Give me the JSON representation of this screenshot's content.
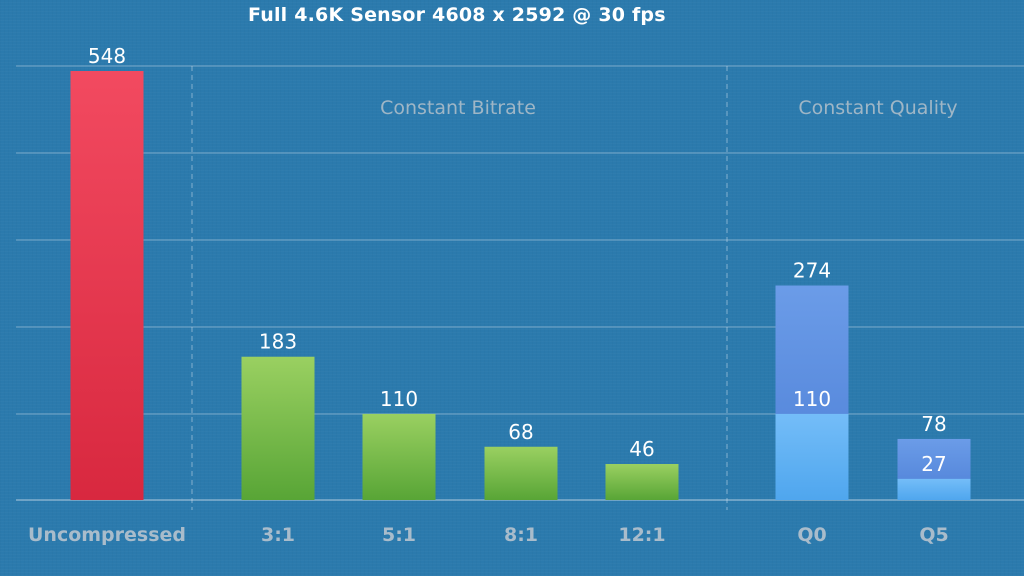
{
  "chart_data": {
    "type": "bar",
    "title": "Full 4.6K Sensor 4608 x 2592 @ 30 fps",
    "categories": [
      "Uncompressed",
      "3:1",
      "5:1",
      "8:1",
      "12:1",
      "Q0",
      "Q5"
    ],
    "series": [
      {
        "values": [
          548,
          183,
          110,
          68,
          46,
          274,
          78
        ]
      },
      {
        "values": [
          null,
          null,
          null,
          null,
          null,
          110,
          27
        ]
      }
    ],
    "groups": [
      {
        "label": "",
        "categories": [
          "Uncompressed"
        ]
      },
      {
        "label": "Constant Bitrate",
        "categories": [
          "3:1",
          "5:1",
          "8:1",
          "12:1"
        ]
      },
      {
        "label": "Constant Quality",
        "categories": [
          "Q0",
          "Q5"
        ]
      }
    ],
    "ylim": [
      0,
      550
    ],
    "grid": true,
    "colors": {
      "uncompressed": "#e8334f",
      "bitrate": "#7cc24a",
      "quality_max": "#5a8fe0",
      "quality_min": "#5ab0f5"
    }
  }
}
